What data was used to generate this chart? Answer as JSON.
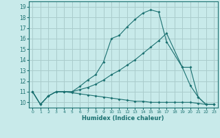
{
  "xlabel": "Humidex (Indice chaleur)",
  "background_color": "#c8eaea",
  "grid_color": "#aacccc",
  "line_color": "#1a7070",
  "xlim": [
    -0.5,
    23.5
  ],
  "ylim": [
    9.5,
    19.5
  ],
  "xticks": [
    0,
    1,
    2,
    3,
    4,
    5,
    6,
    7,
    8,
    9,
    10,
    11,
    12,
    13,
    14,
    15,
    16,
    17,
    18,
    19,
    20,
    21,
    22,
    23
  ],
  "yticks": [
    10,
    11,
    12,
    13,
    14,
    15,
    16,
    17,
    18,
    19
  ],
  "curve1_x": [
    0,
    1,
    2,
    3,
    4,
    5,
    6,
    7,
    8,
    9,
    10,
    11,
    12,
    13,
    14,
    15,
    16,
    17,
    19,
    20,
    21,
    22,
    23
  ],
  "curve1_y": [
    11.0,
    9.8,
    10.6,
    11.0,
    11.0,
    11.0,
    11.5,
    12.1,
    12.6,
    13.8,
    16.0,
    16.3,
    17.1,
    17.8,
    18.4,
    18.7,
    18.5,
    15.7,
    13.3,
    11.6,
    10.5,
    9.8,
    9.8
  ],
  "curve2_x": [
    0,
    1,
    2,
    3,
    4,
    5,
    6,
    7,
    8,
    9,
    10,
    11,
    12,
    13,
    14,
    15,
    16,
    17,
    19,
    20,
    21,
    22,
    23
  ],
  "curve2_y": [
    11.0,
    9.8,
    10.6,
    11.0,
    11.0,
    11.0,
    11.2,
    11.4,
    11.7,
    12.1,
    12.6,
    13.0,
    13.5,
    14.0,
    14.6,
    15.2,
    15.8,
    16.5,
    13.3,
    13.3,
    10.5,
    9.8,
    9.8
  ],
  "curve3_x": [
    0,
    1,
    2,
    3,
    4,
    5,
    6,
    7,
    8,
    9,
    10,
    11,
    12,
    13,
    14,
    15,
    16,
    17,
    18,
    19,
    20,
    21,
    22,
    23
  ],
  "curve3_y": [
    11.0,
    9.8,
    10.6,
    11.0,
    11.0,
    10.9,
    10.8,
    10.7,
    10.6,
    10.5,
    10.4,
    10.3,
    10.2,
    10.1,
    10.1,
    10.0,
    10.0,
    10.0,
    10.0,
    10.0,
    10.0,
    9.9,
    9.8,
    9.8
  ]
}
